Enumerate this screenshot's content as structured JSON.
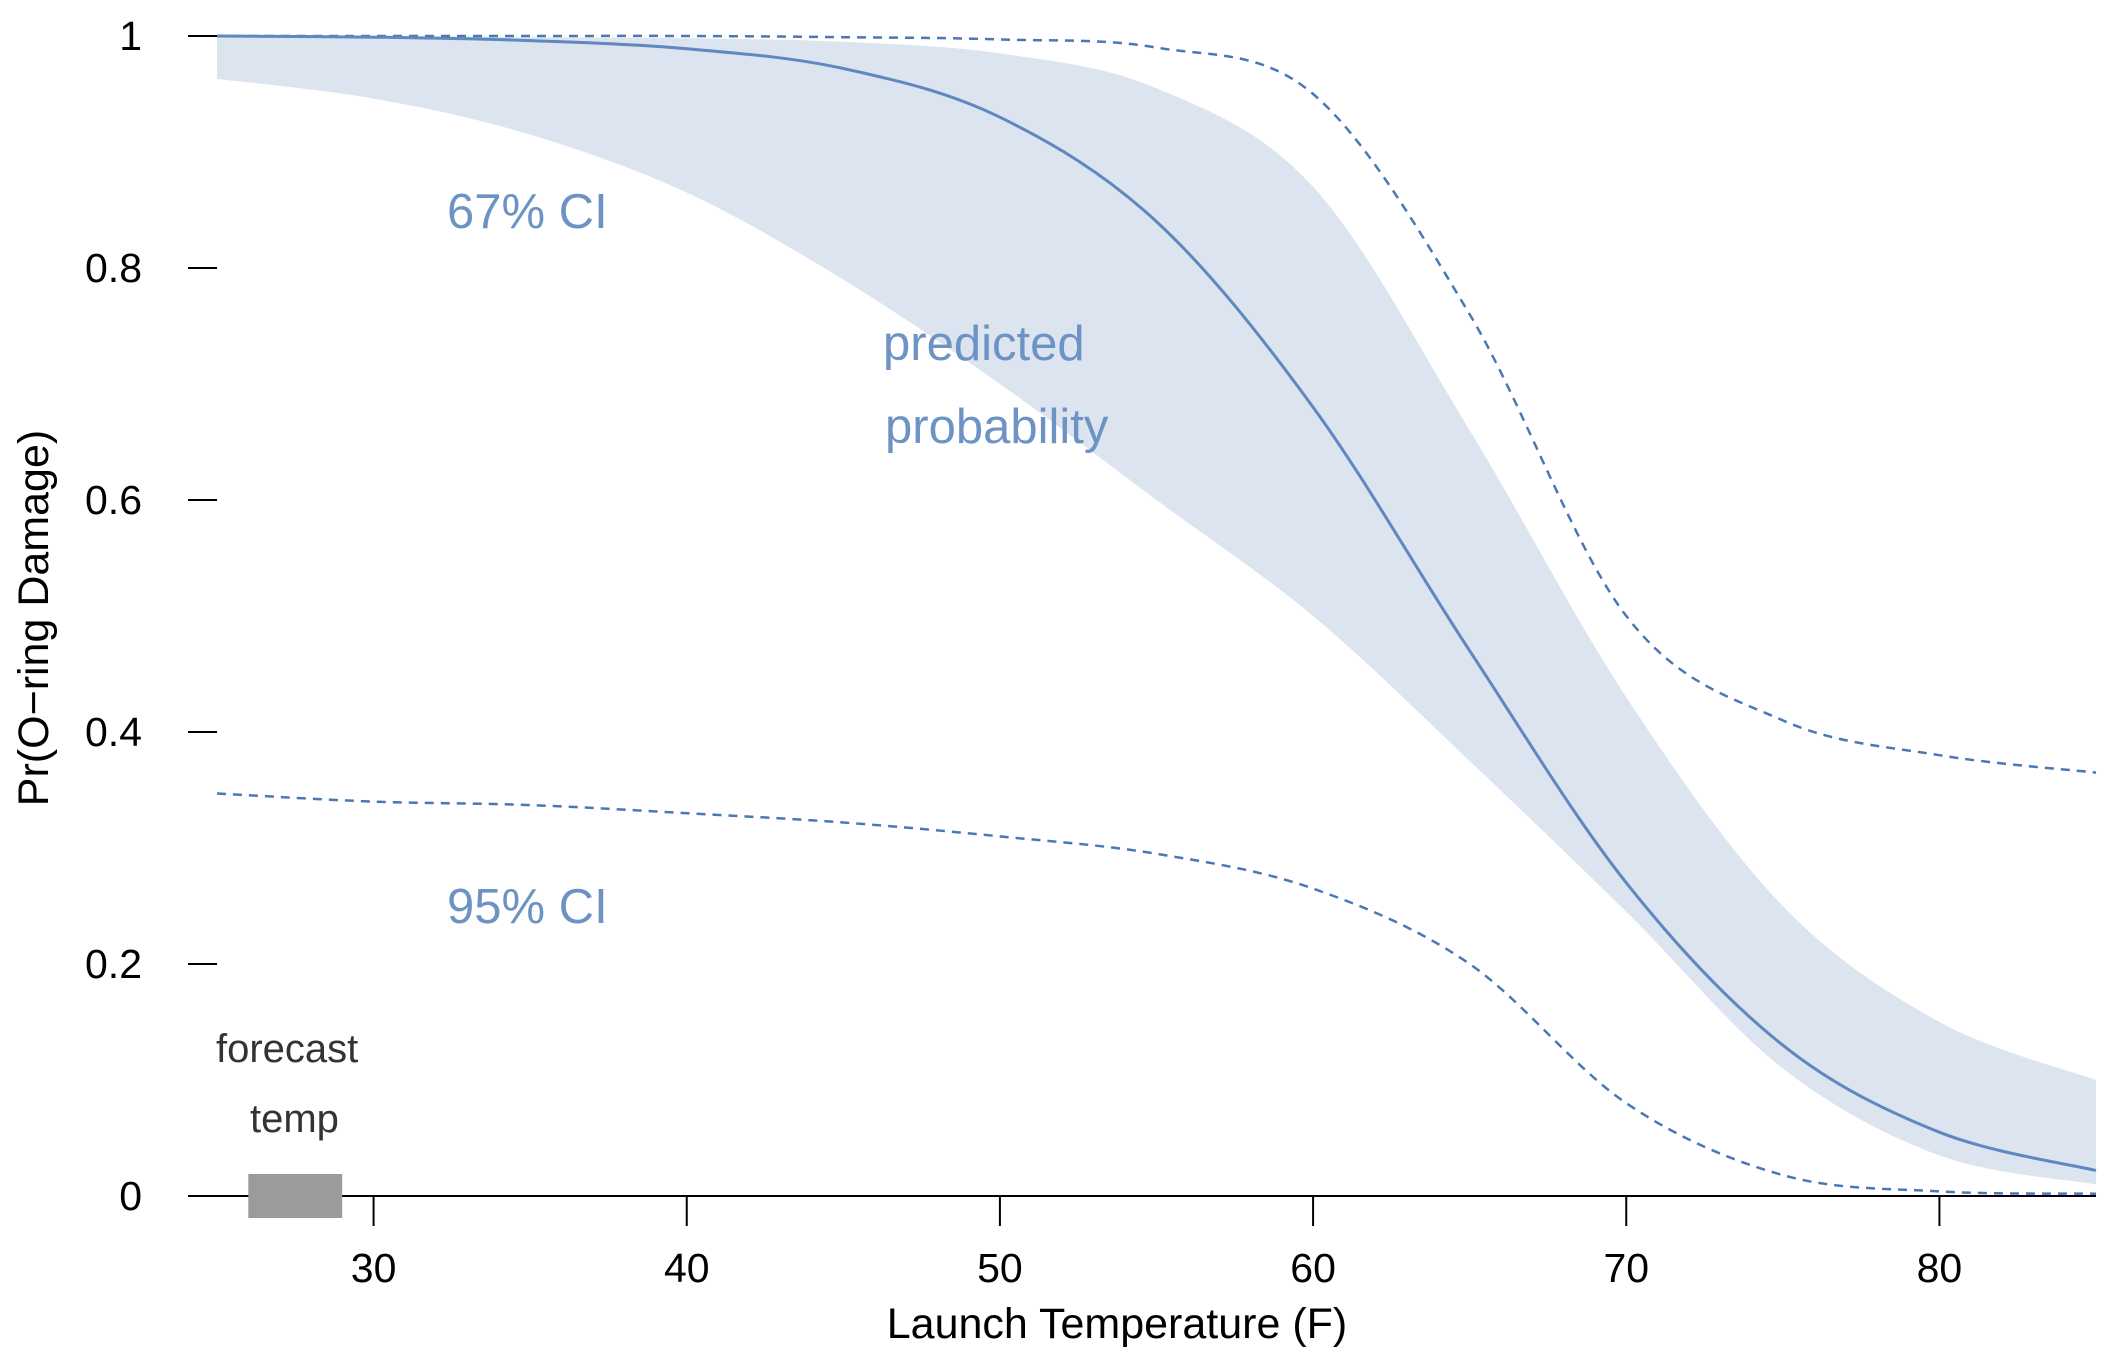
{
  "chart_data": {
    "type": "line",
    "title": "",
    "xlabel": "Launch Temperature (F)",
    "ylabel": "Pr(O−ring Damage)",
    "xlim": [
      25,
      85
    ],
    "ylim": [
      0,
      1
    ],
    "x_ticks": [
      30,
      40,
      50,
      60,
      70,
      80
    ],
    "x_tick_labels": [
      "30",
      "40",
      "50",
      "60",
      "70",
      "80"
    ],
    "y_ticks": [
      0,
      0.2,
      0.4,
      0.6,
      0.8,
      1
    ],
    "y_tick_labels": [
      "0",
      "0.2",
      "0.4",
      "0.6",
      "0.8",
      "1"
    ],
    "grid": false,
    "colors": {
      "predicted": "#5f87c0",
      "ci67_fill": "#dbe4ef",
      "ci95_line": "#4a78b5",
      "forecast": "#9b9b9b",
      "annotation": "#6d93c5"
    },
    "x": [
      25,
      30,
      35,
      40,
      45,
      50,
      55,
      60,
      65,
      70,
      75,
      80,
      85
    ],
    "series": [
      {
        "name": "predicted probability",
        "style": "solid-line",
        "values": [
          1.0,
          0.999,
          0.996,
          0.989,
          0.972,
          0.93,
          0.84,
          0.68,
          0.47,
          0.27,
          0.13,
          0.055,
          0.022
        ]
      },
      {
        "name": "67% CI lower",
        "style": "band-lower",
        "values": [
          0.963,
          0.946,
          0.915,
          0.865,
          0.79,
          0.7,
          0.6,
          0.5,
          0.375,
          0.245,
          0.11,
          0.035,
          0.01
        ]
      },
      {
        "name": "67% CI upper",
        "style": "band-upper",
        "values": [
          1.0,
          1.0,
          0.999,
          0.998,
          0.995,
          0.985,
          0.955,
          0.87,
          0.66,
          0.43,
          0.25,
          0.15,
          0.1
        ]
      },
      {
        "name": "95% CI lower",
        "style": "dashed-line",
        "values": [
          0.347,
          0.34,
          0.337,
          0.33,
          0.322,
          0.31,
          0.295,
          0.265,
          0.2,
          0.08,
          0.018,
          0.004,
          0.002
        ]
      },
      {
        "name": "95% CI upper",
        "style": "dashed-line",
        "values": [
          1.0,
          1.0,
          1.0,
          1.0,
          0.999,
          0.997,
          0.99,
          0.95,
          0.76,
          0.5,
          0.41,
          0.38,
          0.365
        ]
      }
    ],
    "annotations": {
      "ci67": "67% CI",
      "ci95": "95% CI",
      "predicted_line1": "predicted",
      "predicted_line2": "probability",
      "forecast_line1": "forecast",
      "forecast_line2": "temp"
    },
    "forecast_range": [
      26,
      29
    ]
  }
}
